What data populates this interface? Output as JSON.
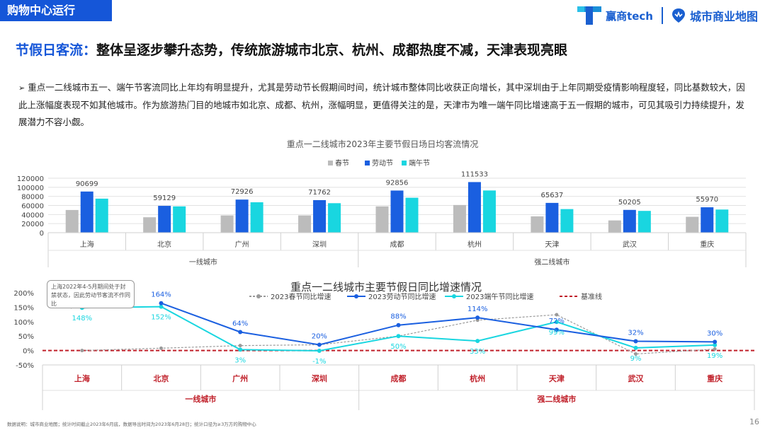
{
  "header": {
    "section_tag": "购物中心运行",
    "brand_name": "赢商tech",
    "brand_name2": "城市商业地图"
  },
  "headline": {
    "key": "节假日客流：",
    "rest": "整体呈逐步攀升态势，传统旅游城市北京、杭州、成都热度不减，天津表现亮眼"
  },
  "paragraph": "重点一二线城市五一、端午节客流同比上年均有明显提升，尤其是劳动节长假期间时间，统计城市整体同比收获正向增长，其中深圳由于上年同期受疫情影响程度轻，同比基数较大，因此上涨幅度表现不如其他城市。作为旅游热门目的地城市如北京、成都、杭州，涨幅明显，更值得关注的是，天津市为唯一端午同比增速高于五一假期的城市，可见其吸引力持续提升，发展潜力不容小觑。",
  "note": "上海2022年4-5月期间处于封禁状态，因此劳动节客流不作同比",
  "footnote": "数据说明：城市商业地图；统计时间截止2023年6月底，数据导出时间为2023年6月28日；统计口径为≥3万方的购物中心",
  "page_number": "16",
  "colors": {
    "spring": "#bcbcbc",
    "labor": "#1a5fe0",
    "dragon": "#19d6e0",
    "baseline": "#c0202a",
    "city_label": "#c0202a"
  },
  "chart_data": [
    {
      "type": "bar",
      "title": "重点一二线城市2023年主要节假日场日均客流情况",
      "categories": [
        "上海",
        "北京",
        "广州",
        "深圳",
        "成都",
        "杭州",
        "天津",
        "武汉",
        "重庆"
      ],
      "groups": [
        {
          "label": "一线城市",
          "members": [
            "上海",
            "北京",
            "广州",
            "深圳"
          ]
        },
        {
          "label": "强二线城市",
          "members": [
            "成都",
            "杭州",
            "天津",
            "武汉",
            "重庆"
          ]
        }
      ],
      "series": [
        {
          "name": "春节",
          "values": [
            50000,
            34000,
            38000,
            38000,
            58000,
            61000,
            36000,
            27000,
            35000
          ]
        },
        {
          "name": "劳动节",
          "values": [
            90699,
            59129,
            72926,
            71762,
            92856,
            111533,
            65637,
            50205,
            55970
          ]
        },
        {
          "name": "端午节",
          "values": [
            75000,
            58000,
            67000,
            65000,
            77000,
            93000,
            52000,
            48000,
            51000
          ]
        }
      ],
      "data_labels": [
        "90699",
        "59129",
        "72926",
        "71762",
        "92856",
        "111533",
        "65637",
        "50205",
        "55970"
      ],
      "ylim": [
        0,
        120000
      ],
      "yticks": [
        "0",
        "20000",
        "40000",
        "60000",
        "80000",
        "100000",
        "120000"
      ],
      "legend_position": "top-center"
    },
    {
      "type": "line",
      "title": "重点一二线城市主要节假日同比增速情况",
      "categories": [
        "上海",
        "北京",
        "广州",
        "深圳",
        "成都",
        "杭州",
        "天津",
        "武汉",
        "重庆"
      ],
      "groups": [
        {
          "label": "一线城市",
          "members": [
            "上海",
            "北京",
            "广州",
            "深圳"
          ]
        },
        {
          "label": "强二线城市",
          "members": [
            "成都",
            "杭州",
            "天津",
            "武汉",
            "重庆"
          ]
        }
      ],
      "series": [
        {
          "name": "2023春节同比增速",
          "values": [
            0,
            8,
            17,
            20,
            50,
            105,
            124,
            -12,
            5
          ]
        },
        {
          "name": "2023劳动节同比增速",
          "values": [
            null,
            164,
            64,
            20,
            88,
            114,
            72,
            32,
            30
          ]
        },
        {
          "name": "2023端午节同比增速",
          "values": [
            148,
            152,
            3,
            -1,
            50,
            33,
            99,
            9,
            19
          ]
        },
        {
          "name": "基准线",
          "values": [
            0,
            0,
            0,
            0,
            0,
            0,
            0,
            0,
            0
          ]
        }
      ],
      "labor_labels": [
        "164%",
        "64%",
        "20%",
        "88%",
        "114%",
        "72%",
        "32%",
        "30%"
      ],
      "dragon_labels": [
        "148%",
        "152%",
        "3%",
        "-1%",
        "50%",
        "33%",
        "99%",
        "9%",
        "19%"
      ],
      "ylim": [
        -50,
        200
      ],
      "yticks": [
        "-50%",
        "0%",
        "50%",
        "100%",
        "150%",
        "200%"
      ],
      "legend_position": "top-center"
    }
  ]
}
